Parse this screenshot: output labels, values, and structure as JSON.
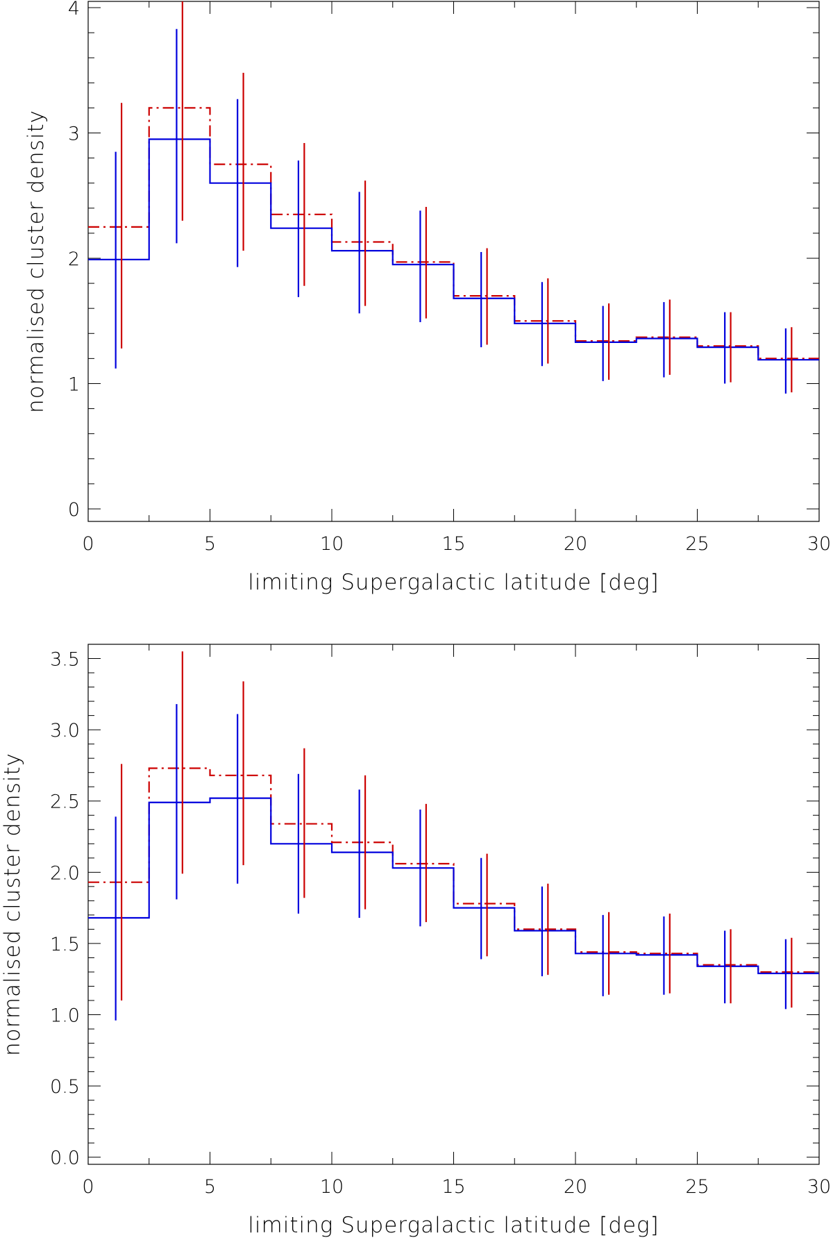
{
  "chart_data": [
    {
      "type": "line",
      "step": true,
      "title": "",
      "xlabel": "limiting Supergalactic latitude [deg]",
      "ylabel": "normalised cluster density",
      "xlim": [
        0,
        30
      ],
      "ylim": [
        -0.1,
        4.05
      ],
      "x_ticks": [
        0,
        5,
        10,
        15,
        20,
        25,
        30
      ],
      "x_tick_labels": [
        "0",
        "5",
        "10",
        "15",
        "20",
        "25",
        "30"
      ],
      "y_ticks": [
        0,
        1,
        2,
        3,
        4
      ],
      "y_tick_labels": [
        "0",
        "1",
        "2",
        "3",
        "4"
      ],
      "x_minor_step": 2.5,
      "y_minor_step": 0.2,
      "bin_edges": [
        0,
        2.5,
        5,
        7.5,
        10,
        12.5,
        15,
        17.5,
        20,
        22.5,
        25,
        27.5,
        30
      ],
      "series": [
        {
          "name": "blue",
          "color": "#0000dd",
          "dash": "solid",
          "values": [
            1.99,
            2.95,
            2.6,
            2.24,
            2.06,
            1.95,
            1.68,
            1.48,
            1.33,
            1.36,
            1.29,
            1.19
          ],
          "err_low": [
            1.12,
            2.12,
            1.93,
            1.69,
            1.56,
            1.49,
            1.29,
            1.14,
            1.02,
            1.05,
            1.0,
            0.92
          ],
          "err_high": [
            2.85,
            3.83,
            3.27,
            2.78,
            2.53,
            2.38,
            2.05,
            1.81,
            1.62,
            1.65,
            1.57,
            1.44
          ],
          "err_x_offset": -0.12
        },
        {
          "name": "red",
          "color": "#cc0000",
          "dash": "dashdot",
          "values": [
            2.25,
            3.2,
            2.75,
            2.35,
            2.13,
            1.97,
            1.7,
            1.5,
            1.34,
            1.37,
            1.3,
            1.2
          ],
          "err_low": [
            1.28,
            2.3,
            2.06,
            1.78,
            1.62,
            1.52,
            1.31,
            1.16,
            1.03,
            1.07,
            1.01,
            0.93
          ],
          "err_high": [
            3.24,
            4.1,
            3.48,
            2.92,
            2.62,
            2.41,
            2.08,
            1.84,
            1.64,
            1.67,
            1.57,
            1.45
          ],
          "err_x_offset": 0.12
        }
      ]
    },
    {
      "type": "line",
      "step": true,
      "title": "",
      "xlabel": "limiting Supergalactic latitude [deg]",
      "ylabel": "normalised cluster density",
      "xlim": [
        0,
        30
      ],
      "ylim": [
        -0.05,
        3.6
      ],
      "x_ticks": [
        0,
        5,
        10,
        15,
        20,
        25,
        30
      ],
      "x_tick_labels": [
        "0",
        "5",
        "10",
        "15",
        "20",
        "25",
        "30"
      ],
      "y_ticks": [
        0,
        0.5,
        1.0,
        1.5,
        2.0,
        2.5,
        3.0,
        3.5
      ],
      "y_tick_labels": [
        "0.0",
        "0.5",
        "1.0",
        "1.5",
        "2.0",
        "2.5",
        "3.0",
        "3.5"
      ],
      "x_minor_step": 2.5,
      "y_minor_step": 0.1,
      "bin_edges": [
        0,
        2.5,
        5,
        7.5,
        10,
        12.5,
        15,
        17.5,
        20,
        22.5,
        25,
        27.5,
        30
      ],
      "series": [
        {
          "name": "blue",
          "color": "#0000dd",
          "dash": "solid",
          "values": [
            1.68,
            2.49,
            2.52,
            2.2,
            2.14,
            2.03,
            1.75,
            1.59,
            1.43,
            1.42,
            1.34,
            1.29
          ],
          "err_low": [
            0.96,
            1.81,
            1.92,
            1.71,
            1.68,
            1.62,
            1.39,
            1.27,
            1.13,
            1.14,
            1.08,
            1.04
          ],
          "err_high": [
            2.39,
            3.18,
            3.11,
            2.69,
            2.58,
            2.44,
            2.1,
            1.9,
            1.7,
            1.69,
            1.59,
            1.53
          ],
          "err_x_offset": -0.12
        },
        {
          "name": "red",
          "color": "#cc0000",
          "dash": "dashdot",
          "values": [
            1.93,
            2.73,
            2.68,
            2.34,
            2.21,
            2.06,
            1.78,
            1.6,
            1.44,
            1.43,
            1.35,
            1.3
          ],
          "err_low": [
            1.1,
            1.99,
            2.05,
            1.82,
            1.74,
            1.65,
            1.41,
            1.28,
            1.14,
            1.15,
            1.08,
            1.05
          ],
          "err_high": [
            2.76,
            3.55,
            3.34,
            2.87,
            2.68,
            2.48,
            2.13,
            1.92,
            1.72,
            1.71,
            1.6,
            1.54
          ],
          "err_x_offset": 0.12
        }
      ]
    }
  ]
}
